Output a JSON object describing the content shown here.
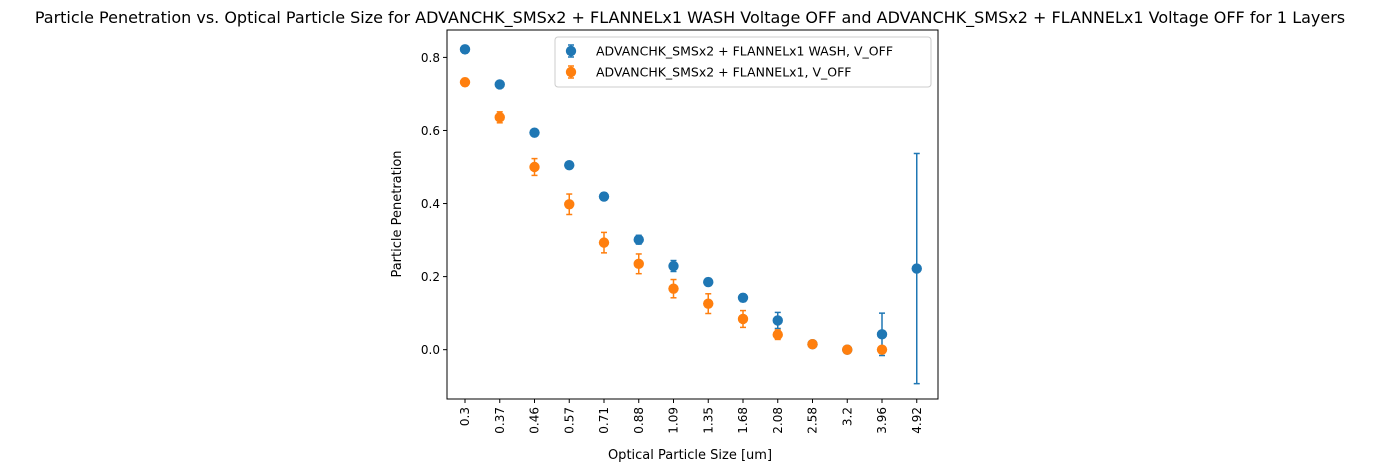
{
  "chart_data": {
    "type": "scatter",
    "title": "Particle Penetration vs. Optical Particle Size for ADVANCHK_SMSx2 + FLANNELx1 WASH Voltage OFF and ADVANCHK_SMSx2 + FLANNELx1 Voltage OFF for 1 Layers",
    "xlabel": "Optical Particle Size [um]",
    "ylabel": "Particle Penetration",
    "categories": [
      "0.3",
      "0.37",
      "0.46",
      "0.57",
      "0.71",
      "0.88",
      "1.09",
      "1.35",
      "1.68",
      "2.08",
      "2.58",
      "3.2",
      "3.96",
      "4.92"
    ],
    "ylim": [
      -0.135,
      0.875
    ],
    "yticks": [
      "0.0",
      "0.2",
      "0.4",
      "0.6",
      "0.8"
    ],
    "ytick_values": [
      0.0,
      0.2,
      0.4,
      0.6,
      0.8
    ],
    "grid": false,
    "legend_position": "top-right",
    "series": [
      {
        "name": "ADVANCHK_SMSx2 + FLANNELx1 WASH, V_OFF",
        "color": "#1f77b4",
        "values": [
          0.822,
          0.726,
          0.594,
          0.505,
          0.419,
          0.301,
          0.229,
          0.185,
          0.142,
          0.08,
          0.015,
          0.0,
          0.042,
          0.222
        ],
        "errors": [
          0.01,
          0.006,
          0.007,
          0.005,
          0.01,
          0.012,
          0.015,
          0.01,
          0.01,
          0.022,
          0.004,
          0.0,
          0.058,
          0.315
        ]
      },
      {
        "name": "ADVANCHK_SMSx2 + FLANNELx1, V_OFF",
        "color": "#ff7f0e",
        "values": [
          0.732,
          0.636,
          0.5,
          0.398,
          0.293,
          0.235,
          0.167,
          0.126,
          0.084,
          0.041,
          0.015,
          0.0,
          0.0,
          null
        ],
        "errors": [
          0.01,
          0.015,
          0.023,
          0.028,
          0.028,
          0.027,
          0.025,
          0.027,
          0.023,
          0.013,
          0.006,
          0.0,
          0.0,
          null
        ]
      }
    ]
  }
}
